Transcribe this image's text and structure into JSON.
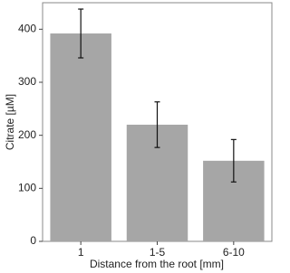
{
  "chart_data": {
    "type": "bar",
    "xlabel": "Distance from the root [mm]",
    "ylabel": "Citrate [µM]",
    "categories": [
      "1",
      "1-5",
      "6-10"
    ],
    "values": [
      392,
      220,
      152
    ],
    "errors": [
      46,
      43,
      40
    ],
    "color": "#a6a6a6",
    "ylim": [
      0,
      450
    ],
    "yticks": [
      0,
      100,
      200,
      300,
      400
    ]
  }
}
